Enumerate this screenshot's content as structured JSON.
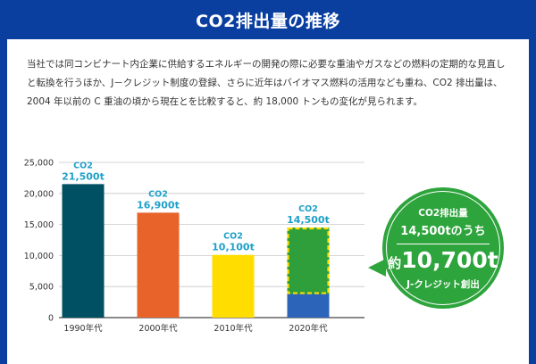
{
  "header": {
    "title": "CO2排出量の推移"
  },
  "description": "当社では同コンビナート内企業に供給するエネルギーの開発の際に必要な重油やガスなどの燃料の定期的な見直しと転換を行うほか、J－クレジット制度の登録、さらに近年はバイオマス燃料の活用なども重ね、CO2 排出量は、2004 年以前の C 重油の頃から現在とを比較すると、約 18,000 トンもの変化が見られます。",
  "callout": {
    "line1": "CO2排出量",
    "line2": "14,500tのうち",
    "amount_prefix": "約",
    "amount": "10,700t",
    "line4": "J-クレジット創出"
  },
  "colors": {
    "background": "#0a3fa0",
    "label": "#1fa0c8",
    "callout": "#2ea43c",
    "bars": [
      "#005063",
      "#e8632a",
      "#ffdd00",
      "#2e9f3a"
    ],
    "j_credit_remainder": "#2b64b8",
    "dashed_outline": "#ffdd00"
  },
  "chart_data": {
    "type": "bar",
    "categories": [
      "1990年代",
      "2000年代",
      "2010年代",
      "2020年代"
    ],
    "values": [
      21500,
      16900,
      10100,
      14500
    ],
    "bar_labels": [
      {
        "top": "CO2",
        "value": "21,500t"
      },
      {
        "top": "CO2",
        "value": "16,900t"
      },
      {
        "top": "CO2",
        "value": "10,100t"
      },
      {
        "top": "CO2",
        "value": "14,500t"
      }
    ],
    "segments_2020": {
      "j_credit": 10700,
      "remainder": 3800
    },
    "ylim": [
      0,
      25000
    ],
    "yticks": [
      0,
      5000,
      10000,
      15000,
      20000,
      25000
    ],
    "ytick_labels": [
      "0",
      "5,000",
      "10,000",
      "15,000",
      "20,000",
      "25,000"
    ],
    "grid": true,
    "title": "",
    "xlabel": "",
    "ylabel": ""
  }
}
